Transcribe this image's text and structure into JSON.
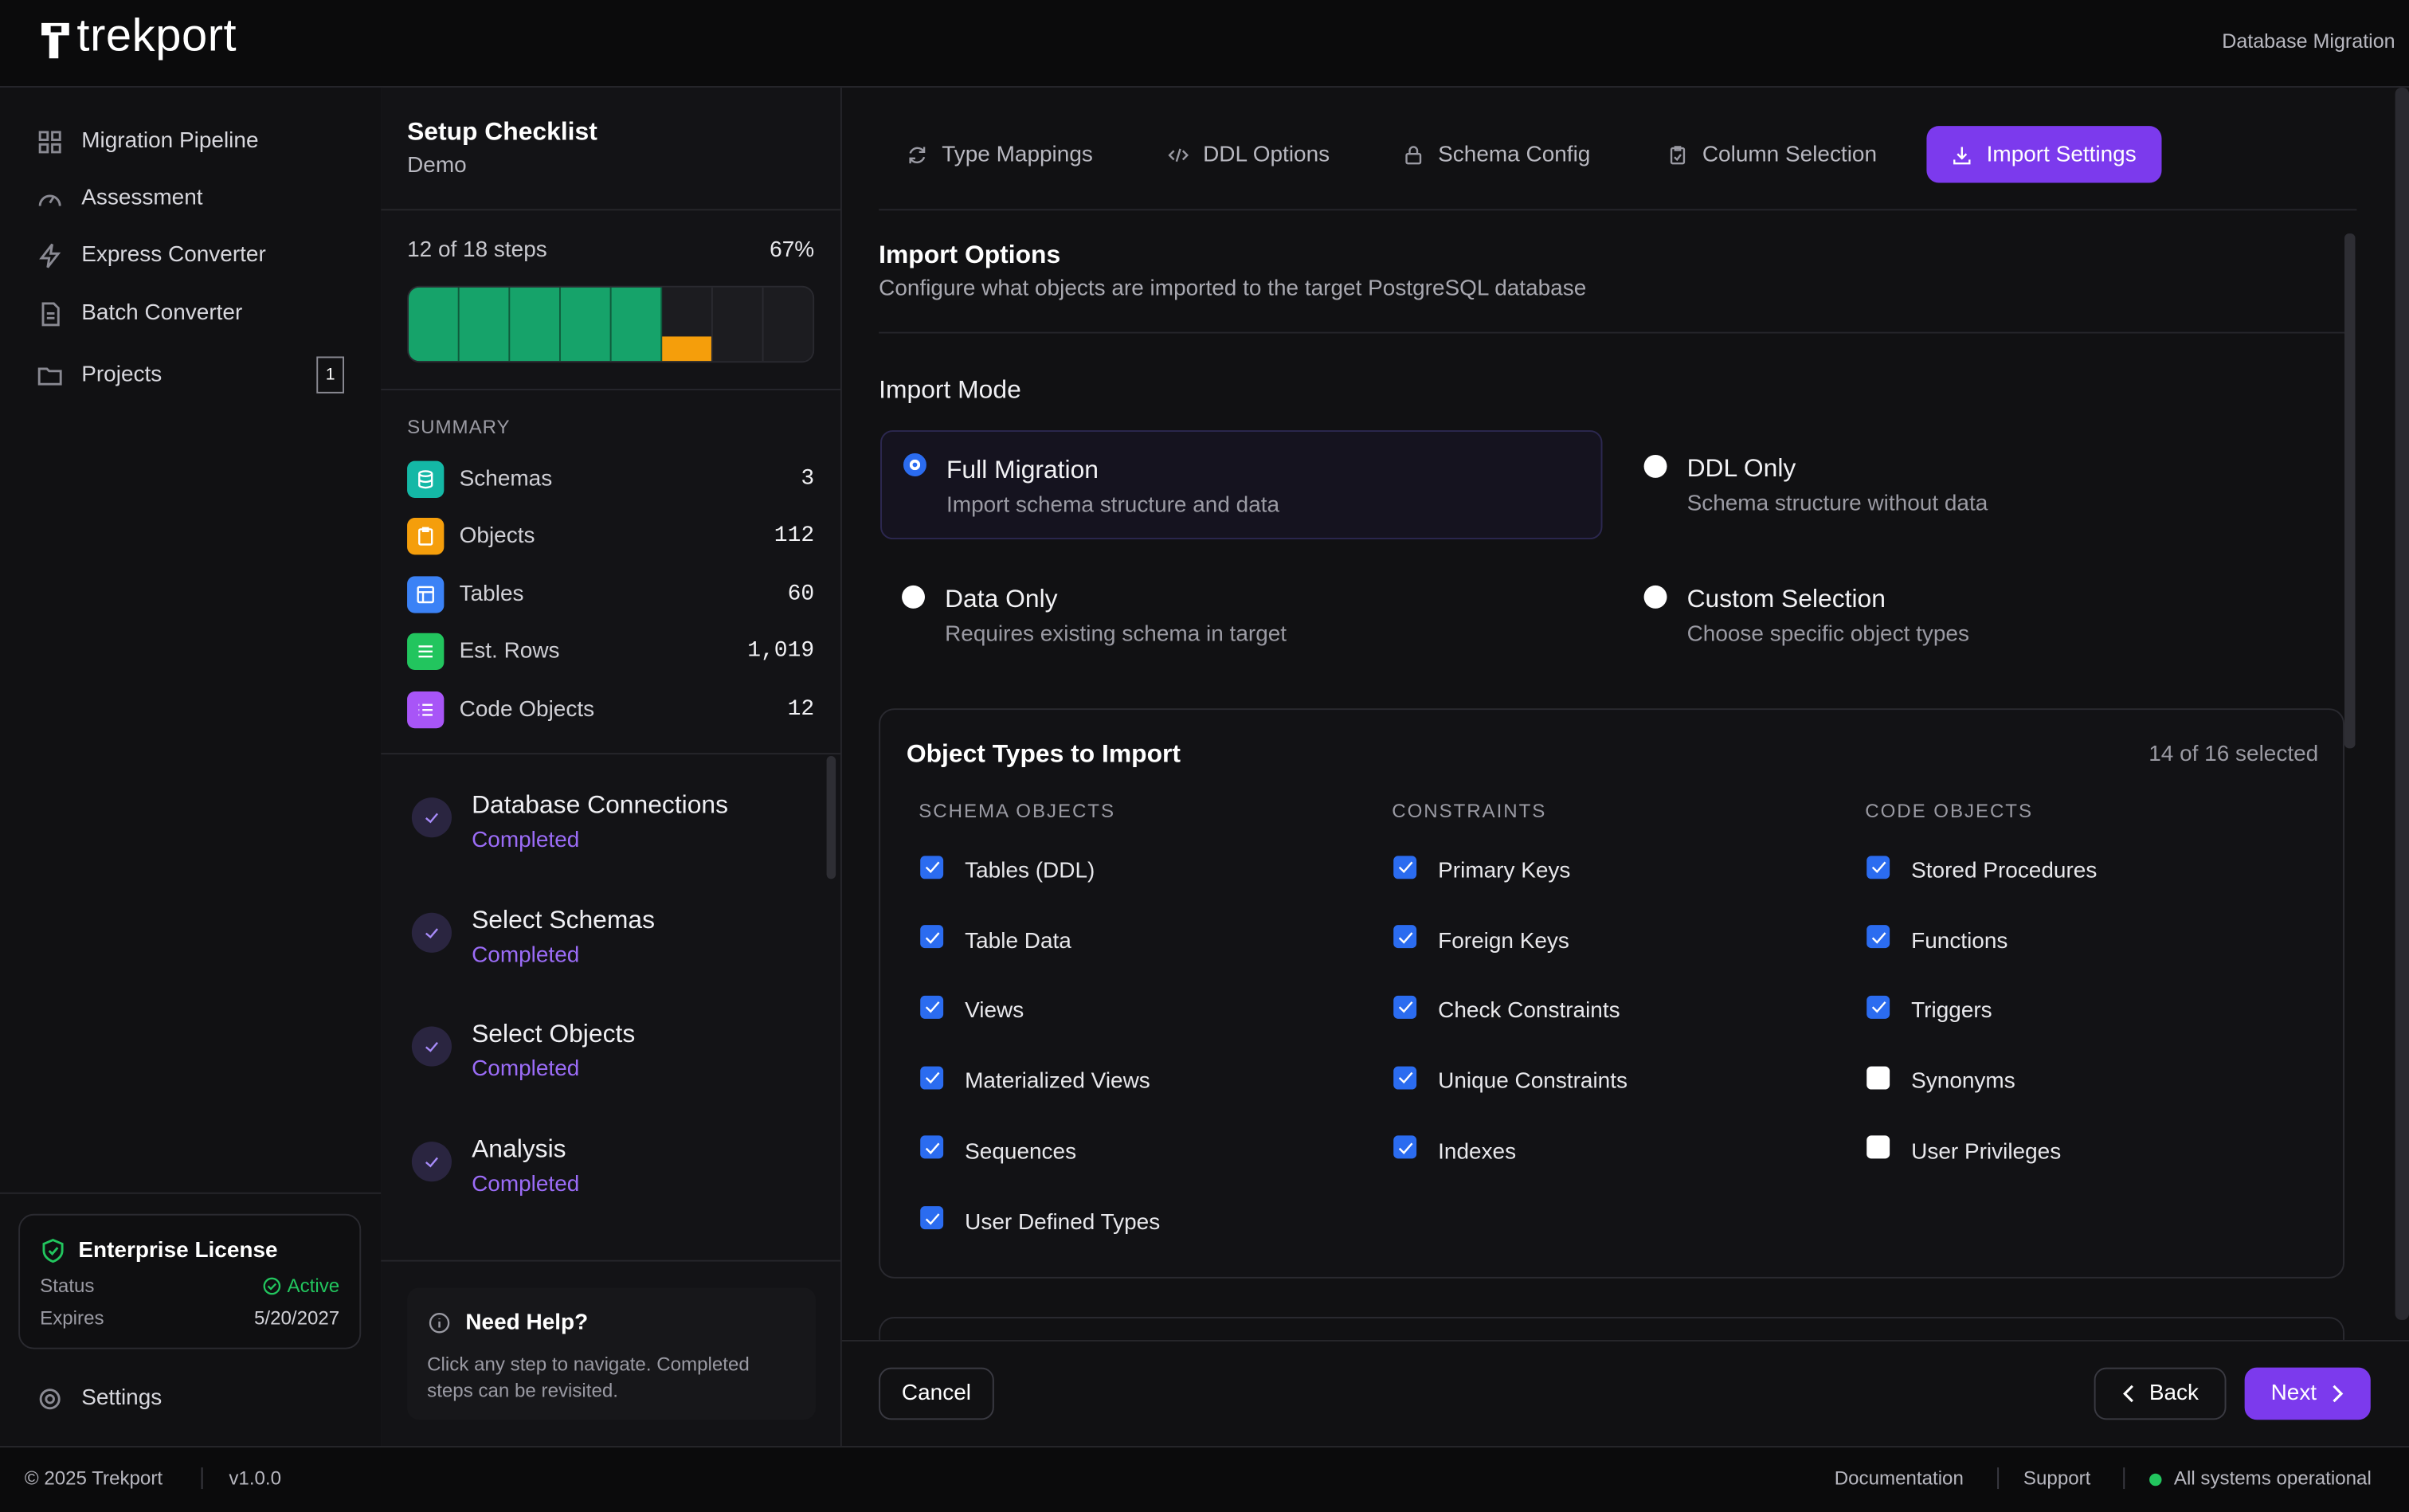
{
  "header": {
    "brand": "trekport",
    "context": "Database Migration"
  },
  "nav": {
    "items": [
      {
        "label": "Migration Pipeline"
      },
      {
        "label": "Assessment"
      },
      {
        "label": "Express Converter"
      },
      {
        "label": "Batch Converter"
      },
      {
        "label": "Projects",
        "badge": "1"
      }
    ],
    "settings": "Settings"
  },
  "license": {
    "title": "Enterprise License",
    "status_label": "Status",
    "status": "Active",
    "expires_label": "Expires",
    "expires": "5/20/2027"
  },
  "checklist": {
    "title": "Setup Checklist",
    "subtitle": "Demo",
    "progress_text": "12 of 18 steps",
    "progress_percent": "67%",
    "summary_title": "SUMMARY",
    "summary": [
      {
        "label": "Schemas",
        "value": "3"
      },
      {
        "label": "Objects",
        "value": "112"
      },
      {
        "label": "Tables",
        "value": "60"
      },
      {
        "label": "Est. Rows",
        "value": "1,019"
      },
      {
        "label": "Code Objects",
        "value": "12"
      }
    ],
    "steps": [
      {
        "name": "Database Connections",
        "status": "Completed"
      },
      {
        "name": "Select Schemas",
        "status": "Completed"
      },
      {
        "name": "Select Objects",
        "status": "Completed"
      },
      {
        "name": "Analysis",
        "status": "Completed"
      }
    ],
    "help": {
      "title": "Need Help?",
      "text": "Click any step to navigate. Completed steps can be revisited."
    }
  },
  "tabs": {
    "items": [
      "Type Mappings",
      "DDL Options",
      "Schema Config",
      "Column Selection",
      "Import Settings"
    ],
    "active": "Import Settings"
  },
  "import_options": {
    "title": "Import Options",
    "description": "Configure what objects are imported to the target PostgreSQL database",
    "mode_title": "Import Mode",
    "modes": [
      {
        "label": "Full Migration",
        "description": "Import schema structure and data",
        "selected": true
      },
      {
        "label": "DDL Only",
        "description": "Schema structure without data",
        "selected": false
      },
      {
        "label": "Data Only",
        "description": "Requires existing schema in target",
        "selected": false
      },
      {
        "label": "Custom Selection",
        "description": "Choose specific object types",
        "selected": false
      }
    ]
  },
  "object_types": {
    "title": "Object Types to Import",
    "count": "14 of 16 selected",
    "groups": [
      {
        "title": "SCHEMA OBJECTS",
        "items": [
          {
            "label": "Tables (DDL)",
            "checked": true
          },
          {
            "label": "Table Data",
            "checked": true
          },
          {
            "label": "Views",
            "checked": true
          },
          {
            "label": "Materialized Views",
            "checked": true
          },
          {
            "label": "Sequences",
            "checked": true
          },
          {
            "label": "User Defined Types",
            "checked": true
          }
        ]
      },
      {
        "title": "CONSTRAINTS",
        "items": [
          {
            "label": "Primary Keys",
            "checked": true
          },
          {
            "label": "Foreign Keys",
            "checked": true
          },
          {
            "label": "Check Constraints",
            "checked": true
          },
          {
            "label": "Unique Constraints",
            "checked": true
          },
          {
            "label": "Indexes",
            "checked": true
          }
        ]
      },
      {
        "title": "CODE OBJECTS",
        "items": [
          {
            "label": "Stored Procedures",
            "checked": true
          },
          {
            "label": "Functions",
            "checked": true
          },
          {
            "label": "Triggers",
            "checked": true
          },
          {
            "label": "Synonyms",
            "checked": false
          },
          {
            "label": "User Privileges",
            "checked": false
          }
        ]
      }
    ]
  },
  "actions": {
    "cancel": "Cancel",
    "back": "Back",
    "next": "Next"
  },
  "status_bar": {
    "copyright": "© 2025 Trekport",
    "version": "v1.0.0",
    "links": [
      "Documentation",
      "Support"
    ],
    "status": "All systems operational"
  }
}
